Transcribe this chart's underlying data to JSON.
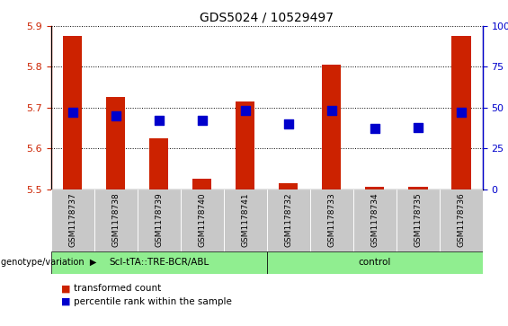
{
  "title": "GDS5024 / 10529497",
  "samples": [
    "GSM1178737",
    "GSM1178738",
    "GSM1178739",
    "GSM1178740",
    "GSM1178741",
    "GSM1178732",
    "GSM1178733",
    "GSM1178734",
    "GSM1178735",
    "GSM1178736"
  ],
  "transformed_count": [
    5.875,
    5.725,
    5.625,
    5.525,
    5.715,
    5.515,
    5.805,
    5.505,
    5.505,
    5.875
  ],
  "percentile_rank": [
    47,
    45,
    42,
    42,
    48,
    40,
    48,
    37,
    38,
    47
  ],
  "group1_label": "Scl-tTA::TRE-BCR/ABL",
  "group2_label": "control",
  "group_color": "#90EE90",
  "ylim_left": [
    5.5,
    5.9
  ],
  "ylim_right": [
    0,
    100
  ],
  "yticks_left": [
    5.5,
    5.6,
    5.7,
    5.8,
    5.9
  ],
  "yticks_right": [
    0,
    25,
    50,
    75,
    100
  ],
  "ytick_labels_right": [
    "0",
    "25",
    "50",
    "75",
    "100%"
  ],
  "bar_color": "#CC2200",
  "dot_color": "#0000CC",
  "bar_width": 0.45,
  "dot_size": 55,
  "left_axis_color": "#CC2200",
  "right_axis_color": "#0000CC",
  "col_bg_color": "#C8C8C8",
  "genotype_label": "genotype/variation"
}
